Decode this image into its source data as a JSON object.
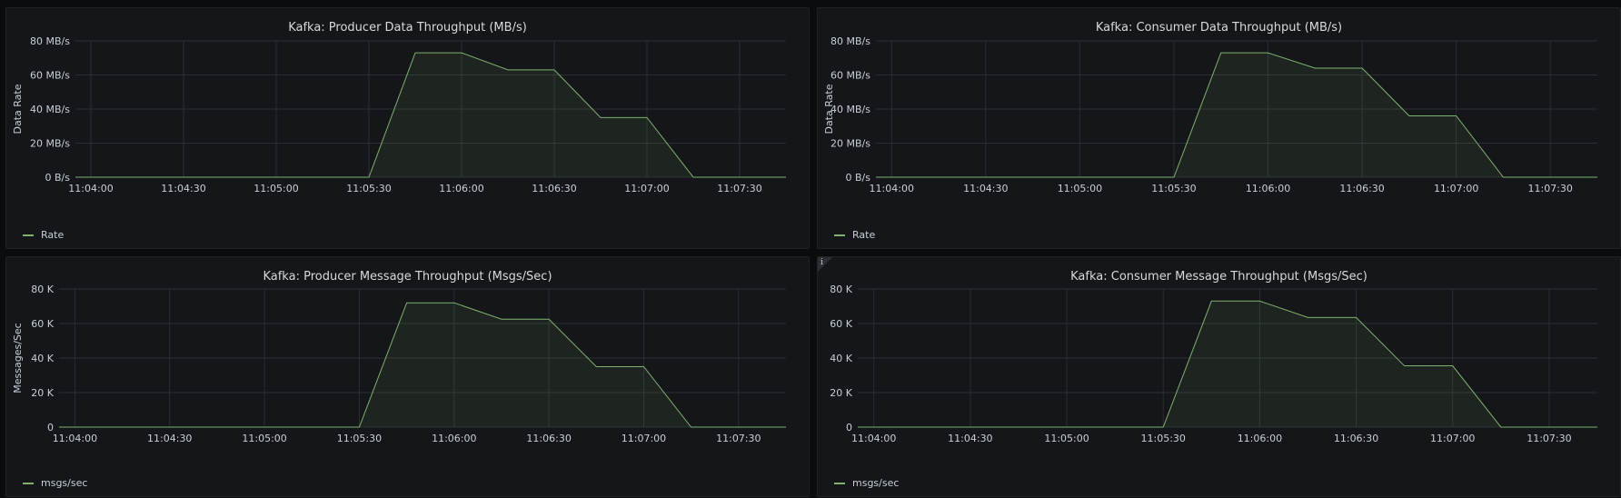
{
  "panels": [
    {
      "title": "Kafka: Producer Data Throughput (MB/s)",
      "ylabel": "Data Rate",
      "legend": "Rate",
      "show_info": false
    },
    {
      "title": "Kafka: Consumer Data Throughput (MB/s)",
      "ylabel": "Data Rate",
      "legend": "Rate",
      "show_info": false
    },
    {
      "title": "Kafka: Producer Message Throughput (Msgs/Sec)",
      "ylabel": "Messages/Sec",
      "legend": "msgs/sec",
      "show_info": false
    },
    {
      "title": "Kafka: Consumer Message Throughput (Msgs/Sec)",
      "ylabel": "",
      "legend": "msgs/sec",
      "show_info": true
    }
  ],
  "info_icon": "info-icon",
  "colors": {
    "series": "#7eb26d",
    "grid": "#2a2d32",
    "background": "#141619"
  },
  "chart_data": [
    {
      "type": "line",
      "title": "Kafka: Producer Data Throughput (MB/s)",
      "xlabel": "",
      "ylabel": "Data Rate",
      "x_ticks": [
        "11:04:00",
        "11:04:30",
        "11:05:00",
        "11:05:30",
        "11:06:00",
        "11:06:30",
        "11:07:00",
        "11:07:30"
      ],
      "y_ticks": [
        "0 B/s",
        "20 MB/s",
        "40 MB/s",
        "60 MB/s",
        "80 MB/s"
      ],
      "ylim": [
        0,
        80
      ],
      "xlim": [
        "11:03:55",
        "11:07:45"
      ],
      "grid": true,
      "legend_position": "bottom-left",
      "series": [
        {
          "name": "Rate",
          "x": [
            "11:03:55",
            "11:05:30",
            "11:05:45",
            "11:06:00",
            "11:06:15",
            "11:06:30",
            "11:06:45",
            "11:07:00",
            "11:07:15",
            "11:07:45"
          ],
          "y": [
            0,
            0,
            73,
            73,
            63,
            63,
            35,
            35,
            0,
            0
          ]
        }
      ]
    },
    {
      "type": "line",
      "title": "Kafka: Consumer Data Throughput (MB/s)",
      "xlabel": "",
      "ylabel": "Data Rate",
      "x_ticks": [
        "11:04:00",
        "11:04:30",
        "11:05:00",
        "11:05:30",
        "11:06:00",
        "11:06:30",
        "11:07:00",
        "11:07:30"
      ],
      "y_ticks": [
        "0 B/s",
        "20 MB/s",
        "40 MB/s",
        "60 MB/s",
        "80 MB/s"
      ],
      "ylim": [
        0,
        80
      ],
      "xlim": [
        "11:03:55",
        "11:07:45"
      ],
      "grid": true,
      "legend_position": "bottom-left",
      "series": [
        {
          "name": "Rate",
          "x": [
            "11:03:55",
            "11:05:30",
            "11:05:45",
            "11:06:00",
            "11:06:15",
            "11:06:30",
            "11:06:45",
            "11:07:00",
            "11:07:15",
            "11:07:45"
          ],
          "y": [
            0,
            0,
            73,
            73,
            64,
            64,
            36,
            36,
            0,
            0
          ]
        }
      ]
    },
    {
      "type": "line",
      "title": "Kafka: Producer Message Throughput (Msgs/Sec)",
      "xlabel": "",
      "ylabel": "Messages/Sec",
      "x_ticks": [
        "11:04:00",
        "11:04:30",
        "11:05:00",
        "11:05:30",
        "11:06:00",
        "11:06:30",
        "11:07:00",
        "11:07:30"
      ],
      "y_ticks": [
        "0",
        "20 K",
        "40 K",
        "60 K",
        "80 K"
      ],
      "ylim": [
        0,
        80000
      ],
      "xlim": [
        "11:03:55",
        "11:07:45"
      ],
      "grid": true,
      "legend_position": "bottom-left",
      "series": [
        {
          "name": "msgs/sec",
          "x": [
            "11:03:55",
            "11:05:30",
            "11:05:45",
            "11:06:00",
            "11:06:15",
            "11:06:30",
            "11:06:45",
            "11:07:00",
            "11:07:15",
            "11:07:45"
          ],
          "y": [
            0,
            0,
            72000,
            72000,
            62500,
            62500,
            35000,
            35000,
            0,
            0
          ]
        }
      ]
    },
    {
      "type": "line",
      "title": "Kafka: Consumer Message Throughput (Msgs/Sec)",
      "xlabel": "",
      "ylabel": "",
      "x_ticks": [
        "11:04:00",
        "11:04:30",
        "11:05:00",
        "11:05:30",
        "11:06:00",
        "11:06:30",
        "11:07:00",
        "11:07:30"
      ],
      "y_ticks": [
        "0",
        "20 K",
        "40 K",
        "60 K",
        "80 K"
      ],
      "ylim": [
        0,
        80000
      ],
      "xlim": [
        "11:03:55",
        "11:07:45"
      ],
      "grid": true,
      "legend_position": "bottom-left",
      "series": [
        {
          "name": "msgs/sec",
          "x": [
            "11:03:55",
            "11:05:30",
            "11:05:45",
            "11:06:00",
            "11:06:15",
            "11:06:30",
            "11:06:45",
            "11:07:00",
            "11:07:15",
            "11:07:45"
          ],
          "y": [
            0,
            0,
            73000,
            73000,
            63500,
            63500,
            35500,
            35500,
            0,
            0
          ]
        }
      ]
    }
  ]
}
